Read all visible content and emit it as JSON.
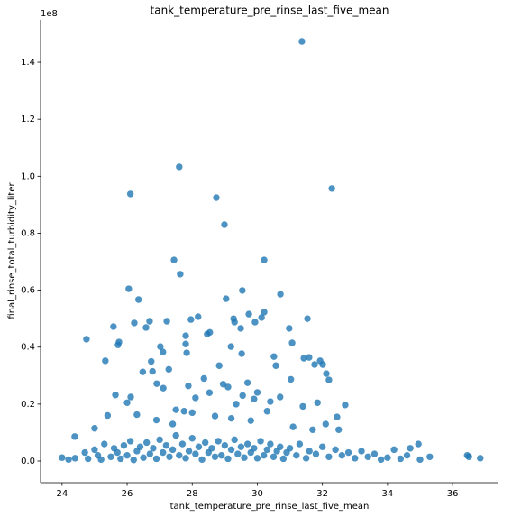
{
  "chart_data": {
    "type": "scatter",
    "title": "tank_temperature_pre_rinse_last_five_mean",
    "x_label": "tank_temperature_pre_rinse_last_five_mean",
    "y_label": "final_rinse_total_turbidity_liter",
    "y_offset_label": "1e8",
    "color": "#1f77b4",
    "x": [
      31.37,
      27.6,
      26.1,
      28.74,
      32.29,
      28.99,
      27.44,
      30.21,
      27.63,
      26.05,
      29.54,
      26.35,
      29.04,
      30.71,
      24.75,
      25.33,
      25.58,
      25.75,
      25.72,
      26.22,
      26.58,
      26.69,
      27.22,
      27.96,
      28.18,
      28.46,
      28.54,
      29.27,
      29.3,
      29.49,
      29.74,
      29.93,
      30.13,
      30.21,
      30.98,
      31.07,
      31.54,
      26.74,
      27.02,
      27.1,
      27.8,
      27.8,
      27.83,
      29.19,
      29.52,
      30.51,
      30.57,
      31.43,
      31.59,
      31.76,
      31.93,
      32.12,
      32.01,
      25.64,
      26.0,
      26.11,
      26.48,
      26.78,
      26.91,
      27.11,
      27.28,
      27.5,
      27.75,
      27.88,
      28.1,
      28.36,
      28.53,
      28.83,
      28.95,
      29.1,
      29.35,
      29.55,
      29.7,
      29.9,
      30.0,
      30.4,
      30.7,
      31.03,
      31.4,
      31.85,
      32.2,
      32.45,
      32.7,
      25.0,
      25.4,
      26.3,
      26.9,
      27.4,
      28.0,
      28.7,
      29.2,
      29.8,
      30.3,
      31.1,
      31.7,
      32.1,
      32.5,
      34.2,
      34.7,
      34.95,
      35.3,
      36.45,
      36.5,
      36.85,
      24.39,
      24.0,
      24.2,
      24.4,
      24.7,
      24.8,
      25.0,
      25.1,
      25.2,
      25.3,
      25.5,
      25.6,
      25.7,
      25.8,
      25.9,
      26.0,
      26.1,
      26.2,
      26.3,
      26.4,
      26.5,
      26.6,
      26.7,
      26.8,
      26.9,
      27.0,
      27.1,
      27.2,
      27.3,
      27.4,
      27.5,
      27.6,
      27.7,
      27.8,
      27.9,
      28.0,
      28.1,
      28.2,
      28.3,
      28.4,
      28.5,
      28.6,
      28.7,
      28.8,
      28.9,
      29.0,
      29.1,
      29.2,
      29.3,
      29.4,
      29.5,
      29.6,
      29.7,
      29.8,
      29.9,
      30.0,
      30.1,
      30.2,
      30.3,
      30.4,
      30.5,
      30.6,
      30.7,
      30.8,
      30.9,
      31.0,
      31.2,
      31.3,
      31.5,
      31.6,
      31.8,
      32.0,
      32.2,
      32.4,
      32.6,
      32.8,
      33.0,
      33.2,
      33.4,
      33.6,
      33.8,
      34.0,
      34.4,
      34.6,
      35.0
    ],
    "values": [
      1.473,
      1.033,
      0.938,
      0.925,
      0.957,
      0.83,
      0.706,
      0.706,
      0.656,
      0.605,
      0.599,
      0.567,
      0.57,
      0.586,
      0.428,
      0.352,
      0.472,
      0.418,
      0.408,
      0.485,
      0.469,
      0.491,
      0.491,
      0.497,
      0.507,
      0.446,
      0.452,
      0.5,
      0.488,
      0.466,
      0.516,
      0.488,
      0.504,
      0.523,
      0.466,
      0.415,
      0.5,
      0.35,
      0.402,
      0.383,
      0.411,
      0.44,
      0.38,
      0.402,
      0.377,
      0.367,
      0.335,
      0.361,
      0.364,
      0.339,
      0.352,
      0.307,
      0.339,
      0.232,
      0.205,
      0.225,
      0.313,
      0.315,
      0.272,
      0.256,
      0.322,
      0.18,
      0.175,
      0.264,
      0.222,
      0.29,
      0.24,
      0.335,
      0.27,
      0.26,
      0.2,
      0.23,
      0.275,
      0.218,
      0.241,
      0.209,
      0.225,
      0.287,
      0.192,
      0.205,
      0.285,
      0.155,
      0.197,
      0.115,
      0.16,
      0.163,
      0.144,
      0.13,
      0.17,
      0.158,
      0.15,
      0.142,
      0.175,
      0.12,
      0.11,
      0.13,
      0.11,
      0.04,
      0.045,
      0.06,
      0.015,
      0.02,
      0.015,
      0.01,
      0.086,
      0.012,
      0.005,
      0.01,
      0.03,
      0.008,
      0.04,
      0.02,
      0.005,
      0.06,
      0.015,
      0.045,
      0.03,
      0.008,
      0.055,
      0.02,
      0.07,
      0.004,
      0.035,
      0.05,
      0.012,
      0.065,
      0.025,
      0.045,
      0.008,
      0.075,
      0.03,
      0.055,
      0.015,
      0.04,
      0.09,
      0.02,
      0.06,
      0.01,
      0.035,
      0.08,
      0.025,
      0.05,
      0.005,
      0.065,
      0.03,
      0.045,
      0.015,
      0.07,
      0.02,
      0.055,
      0.008,
      0.04,
      0.075,
      0.025,
      0.05,
      0.012,
      0.06,
      0.03,
      0.045,
      0.01,
      0.07,
      0.02,
      0.04,
      0.06,
      0.015,
      0.035,
      0.05,
      0.008,
      0.03,
      0.045,
      0.02,
      0.06,
      0.01,
      0.035,
      0.025,
      0.05,
      0.015,
      0.04,
      0.02,
      0.03,
      0.01,
      0.035,
      0.015,
      0.025,
      0.005,
      0.012,
      0.008,
      0.02,
      0.005
    ],
    "xlim": [
      23.34,
      37.41
    ],
    "xticks": [
      24,
      26,
      28,
      30,
      32,
      34,
      36
    ],
    "ylim": [
      -0.076,
      1.549
    ],
    "yticks": [
      {
        "value": 0,
        "label": "0.0"
      },
      0.2,
      0.4,
      0.6,
      0.8,
      {
        "value": 1,
        "label": "1.0"
      },
      1.2,
      1.4
    ],
    "grid": false
  }
}
